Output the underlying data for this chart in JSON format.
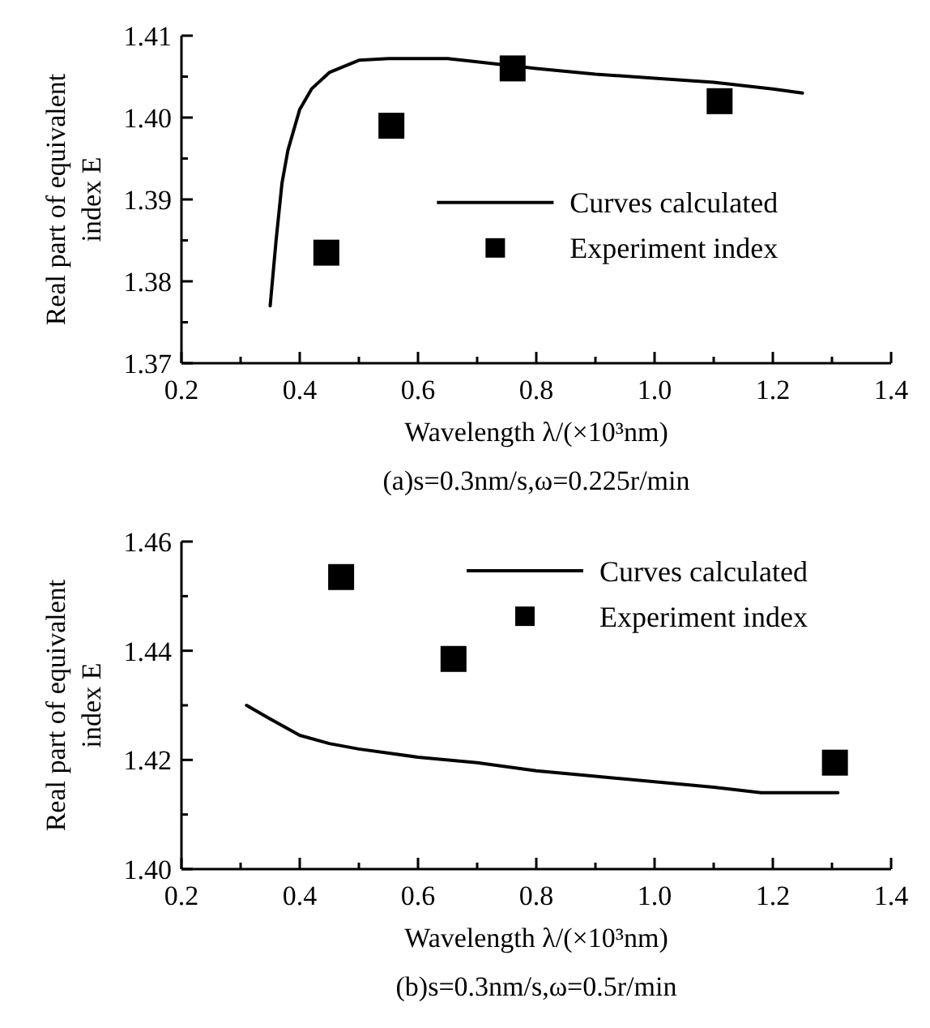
{
  "chart_data": [
    {
      "type": "line",
      "xlabel": "Wavelength λ/(×10³nm)",
      "ylabel": "Real part of equivalent index E",
      "annotations": [
        "(a)s=0.3nm/s,ω=0.225r/min"
      ],
      "xlim": [
        0.2,
        1.4
      ],
      "ylim": [
        1.37,
        1.41
      ],
      "xticks": [
        0.2,
        {
          "value": 0.3,
          "label": null
        },
        0.4,
        {
          "value": 0.5,
          "label": null
        },
        0.6,
        {
          "value": 0.7,
          "label": null
        },
        0.8,
        {
          "value": 0.9,
          "label": null
        },
        {
          "value": 1.0,
          "label": "1.0"
        },
        {
          "value": 1.1,
          "label": null
        },
        1.2,
        {
          "value": 1.3,
          "label": null
        },
        1.4
      ],
      "yticks": [
        1.37,
        {
          "value": 1.375,
          "label": null
        },
        1.38,
        {
          "value": 1.385,
          "label": null
        },
        1.39,
        {
          "value": 1.395,
          "label": null
        },
        {
          "value": 1.4,
          "label": "1.40"
        },
        {
          "value": 1.405,
          "label": null
        },
        1.41
      ],
      "legend": "right",
      "grid": false,
      "series": [
        {
          "name": "Curves calculated",
          "color": "#000000",
          "marker": "none",
          "line_style": "solid",
          "x": [
            0.35,
            0.36,
            0.37,
            0.38,
            0.4,
            0.42,
            0.45,
            0.5,
            0.55,
            0.65,
            0.7,
            0.8,
            0.9,
            1.0,
            1.1,
            1.2,
            1.25
          ],
          "values": [
            1.377,
            1.385,
            1.392,
            1.396,
            1.401,
            1.4035,
            1.4055,
            1.407,
            1.4072,
            1.4072,
            1.4068,
            1.406,
            1.4053,
            1.4048,
            1.4043,
            1.4035,
            1.403
          ]
        },
        {
          "name": "Experiment index",
          "type": "scatter",
          "color": "#000000",
          "marker": "square",
          "x": [
            0.445,
            0.555,
            0.76,
            1.11
          ],
          "values": [
            1.3835,
            1.399,
            1.406,
            1.402
          ]
        }
      ]
    },
    {
      "type": "line",
      "xlabel": "Wavelength λ/(×10³nm)",
      "ylabel": "Real part of equivalent index E",
      "annotations": [
        "(b)s=0.3nm/s,ω=0.5r/min"
      ],
      "xlim": [
        0.2,
        1.4
      ],
      "ylim": [
        1.4,
        1.46
      ],
      "xticks": [
        0.2,
        {
          "value": 0.3,
          "label": null
        },
        0.4,
        {
          "value": 0.5,
          "label": null
        },
        0.6,
        {
          "value": 0.7,
          "label": null
        },
        0.8,
        {
          "value": 0.9,
          "label": null
        },
        {
          "value": 1.0,
          "label": "1.0"
        },
        {
          "value": 1.1,
          "label": null
        },
        1.2,
        {
          "value": 1.3,
          "label": null
        },
        1.4
      ],
      "yticks": [
        {
          "value": 1.4,
          "label": "1.40"
        },
        {
          "value": 1.41,
          "label": null
        },
        1.42,
        {
          "value": 1.43,
          "label": null
        },
        1.44,
        {
          "value": 1.45,
          "label": null
        },
        1.46
      ],
      "legend": "top right",
      "grid": false,
      "series": [
        {
          "name": "Curves calculated",
          "color": "#000000",
          "marker": "none",
          "line_style": "solid",
          "x": [
            0.31,
            0.35,
            0.4,
            0.45,
            0.5,
            0.6,
            0.7,
            0.8,
            0.9,
            1.0,
            1.1,
            1.18,
            1.31
          ],
          "values": [
            1.43,
            1.4275,
            1.4245,
            1.423,
            1.422,
            1.4205,
            1.4195,
            1.418,
            1.417,
            1.416,
            1.415,
            1.414,
            1.414
          ]
        },
        {
          "name": "Experiment index",
          "type": "scatter",
          "color": "#000000",
          "marker": "square",
          "x": [
            0.47,
            0.66,
            1.305
          ],
          "values": [
            1.4535,
            1.4385,
            1.4195
          ]
        }
      ]
    }
  ]
}
